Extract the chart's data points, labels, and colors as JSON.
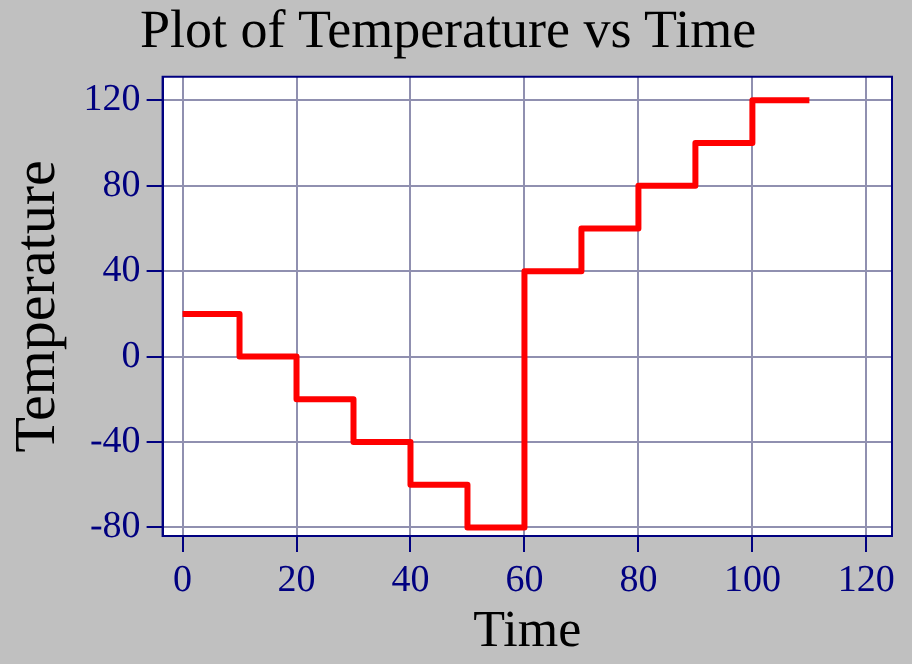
{
  "chart_data": {
    "type": "step",
    "title": "Plot of Temperature vs Time",
    "xlabel": "Time",
    "ylabel": "Temperature",
    "x": [
      0,
      10,
      20,
      30,
      40,
      50,
      60,
      70,
      80,
      90,
      100,
      110
    ],
    "series": [
      {
        "color": "#ff0000",
        "values": [
          20,
          0,
          -20,
          -40,
          -60,
          -80,
          40,
          60,
          80,
          100,
          120,
          120
        ]
      }
    ],
    "xlim": [
      -3.5,
      124.5
    ],
    "xticks": [
      0,
      20,
      40,
      60,
      80,
      100,
      120
    ],
    "ylim": [
      -84,
      131
    ],
    "yticks": [
      -80,
      -40,
      0,
      40,
      80,
      120
    ],
    "grid": true,
    "legend": false,
    "marker": "none",
    "line_style": "solid"
  }
}
